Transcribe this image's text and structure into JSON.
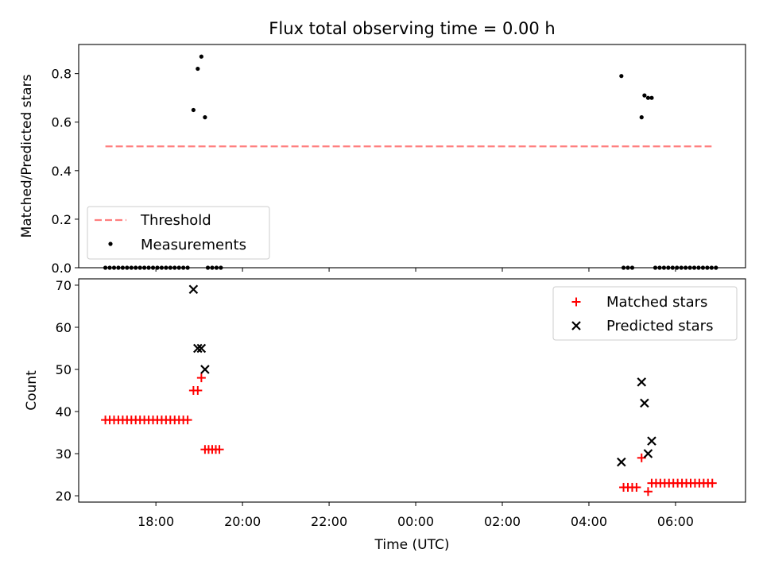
{
  "chart_data": [
    {
      "type": "scatter",
      "title": "Flux total observing time = 0.00 h",
      "ylabel": "Matched/Predicted stars",
      "xlabel": "",
      "ylim": [
        0,
        0.92
      ],
      "yticks": [
        "0.0",
        "0.2",
        "0.4",
        "0.6",
        "0.8"
      ],
      "ytick_values": [
        0,
        0.2,
        0.4,
        0.6,
        0.8
      ],
      "legend_position": "lower-left",
      "legend": [
        "Threshold",
        "Measurements"
      ],
      "threshold": {
        "name": "Threshold",
        "value": 0.5,
        "x_start": "16:50",
        "x_end": "06:50",
        "color": "#ff7f7f"
      },
      "series": [
        {
          "name": "Measurements",
          "color": "#000000",
          "points": [
            {
              "x": "16:50",
              "y": 0
            },
            {
              "x": "16:56",
              "y": 0
            },
            {
              "x": "17:02",
              "y": 0
            },
            {
              "x": "17:08",
              "y": 0
            },
            {
              "x": "17:14",
              "y": 0
            },
            {
              "x": "17:20",
              "y": 0
            },
            {
              "x": "17:26",
              "y": 0
            },
            {
              "x": "17:32",
              "y": 0
            },
            {
              "x": "17:38",
              "y": 0
            },
            {
              "x": "17:44",
              "y": 0
            },
            {
              "x": "17:50",
              "y": 0
            },
            {
              "x": "17:56",
              "y": 0
            },
            {
              "x": "18:02",
              "y": 0
            },
            {
              "x": "18:08",
              "y": 0
            },
            {
              "x": "18:14",
              "y": 0
            },
            {
              "x": "18:20",
              "y": 0
            },
            {
              "x": "18:26",
              "y": 0
            },
            {
              "x": "18:32",
              "y": 0
            },
            {
              "x": "18:38",
              "y": 0
            },
            {
              "x": "18:44",
              "y": 0
            },
            {
              "x": "18:52",
              "y": 0.65
            },
            {
              "x": "18:58",
              "y": 0.82
            },
            {
              "x": "19:03",
              "y": 0.87
            },
            {
              "x": "19:08",
              "y": 0.62
            },
            {
              "x": "19:12",
              "y": 0
            },
            {
              "x": "19:18",
              "y": 0
            },
            {
              "x": "19:24",
              "y": 0
            },
            {
              "x": "19:30",
              "y": 0
            },
            {
              "x": "04:45",
              "y": 0.79
            },
            {
              "x": "04:48",
              "y": 0
            },
            {
              "x": "04:54",
              "y": 0
            },
            {
              "x": "05:00",
              "y": 0
            },
            {
              "x": "05:13",
              "y": 0.62
            },
            {
              "x": "05:17",
              "y": 0.71
            },
            {
              "x": "05:22",
              "y": 0.7
            },
            {
              "x": "05:27",
              "y": 0.7
            },
            {
              "x": "05:32",
              "y": 0
            },
            {
              "x": "05:38",
              "y": 0
            },
            {
              "x": "05:44",
              "y": 0
            },
            {
              "x": "05:50",
              "y": 0
            },
            {
              "x": "05:56",
              "y": 0
            },
            {
              "x": "06:02",
              "y": 0
            },
            {
              "x": "06:08",
              "y": 0
            },
            {
              "x": "06:14",
              "y": 0
            },
            {
              "x": "06:20",
              "y": 0
            },
            {
              "x": "06:26",
              "y": 0
            },
            {
              "x": "06:32",
              "y": 0
            },
            {
              "x": "06:38",
              "y": 0
            },
            {
              "x": "06:44",
              "y": 0
            },
            {
              "x": "06:50",
              "y": 0
            },
            {
              "x": "06:56",
              "y": 0
            }
          ]
        }
      ]
    },
    {
      "type": "scatter",
      "title": "",
      "ylabel": "Count",
      "xlabel": "Time (UTC)",
      "ylim": [
        18.5,
        71.5
      ],
      "yticks": [
        "20",
        "30",
        "40",
        "50",
        "60",
        "70"
      ],
      "ytick_values": [
        20,
        30,
        40,
        50,
        60,
        70
      ],
      "xticks": [
        "18:00",
        "20:00",
        "22:00",
        "00:00",
        "02:00",
        "04:00",
        "06:00"
      ],
      "legend_position": "upper-right",
      "legend": [
        "Matched stars",
        "Predicted stars"
      ],
      "series": [
        {
          "name": "Matched stars",
          "color": "#ff0000",
          "marker": "plus",
          "points": [
            {
              "x": "16:50",
              "y": 38
            },
            {
              "x": "16:56",
              "y": 38
            },
            {
              "x": "17:02",
              "y": 38
            },
            {
              "x": "17:08",
              "y": 38
            },
            {
              "x": "17:14",
              "y": 38
            },
            {
              "x": "17:20",
              "y": 38
            },
            {
              "x": "17:26",
              "y": 38
            },
            {
              "x": "17:32",
              "y": 38
            },
            {
              "x": "17:38",
              "y": 38
            },
            {
              "x": "17:44",
              "y": 38
            },
            {
              "x": "17:50",
              "y": 38
            },
            {
              "x": "17:56",
              "y": 38
            },
            {
              "x": "18:02",
              "y": 38
            },
            {
              "x": "18:08",
              "y": 38
            },
            {
              "x": "18:14",
              "y": 38
            },
            {
              "x": "18:20",
              "y": 38
            },
            {
              "x": "18:26",
              "y": 38
            },
            {
              "x": "18:32",
              "y": 38
            },
            {
              "x": "18:38",
              "y": 38
            },
            {
              "x": "18:44",
              "y": 38
            },
            {
              "x": "18:52",
              "y": 45
            },
            {
              "x": "18:58",
              "y": 45
            },
            {
              "x": "19:03",
              "y": 48
            },
            {
              "x": "19:08",
              "y": 31
            },
            {
              "x": "19:13",
              "y": 31
            },
            {
              "x": "19:18",
              "y": 31
            },
            {
              "x": "19:23",
              "y": 31
            },
            {
              "x": "19:28",
              "y": 31
            },
            {
              "x": "04:48",
              "y": 22
            },
            {
              "x": "04:54",
              "y": 22
            },
            {
              "x": "05:00",
              "y": 22
            },
            {
              "x": "05:06",
              "y": 22
            },
            {
              "x": "05:13",
              "y": 29
            },
            {
              "x": "05:22",
              "y": 21
            },
            {
              "x": "05:27",
              "y": 23
            },
            {
              "x": "05:33",
              "y": 23
            },
            {
              "x": "05:39",
              "y": 23
            },
            {
              "x": "05:45",
              "y": 23
            },
            {
              "x": "05:51",
              "y": 23
            },
            {
              "x": "05:57",
              "y": 23
            },
            {
              "x": "06:03",
              "y": 23
            },
            {
              "x": "06:09",
              "y": 23
            },
            {
              "x": "06:15",
              "y": 23
            },
            {
              "x": "06:21",
              "y": 23
            },
            {
              "x": "06:27",
              "y": 23
            },
            {
              "x": "06:33",
              "y": 23
            },
            {
              "x": "06:39",
              "y": 23
            },
            {
              "x": "06:45",
              "y": 23
            },
            {
              "x": "06:51",
              "y": 23
            }
          ]
        },
        {
          "name": "Predicted stars",
          "color": "#000000",
          "marker": "x",
          "points": [
            {
              "x": "18:52",
              "y": 69
            },
            {
              "x": "18:58",
              "y": 55
            },
            {
              "x": "19:03",
              "y": 55
            },
            {
              "x": "19:08",
              "y": 50
            },
            {
              "x": "04:45",
              "y": 28
            },
            {
              "x": "05:13",
              "y": 47
            },
            {
              "x": "05:17",
              "y": 42
            },
            {
              "x": "05:22",
              "y": 30
            },
            {
              "x": "05:27",
              "y": 33
            }
          ]
        }
      ]
    }
  ]
}
